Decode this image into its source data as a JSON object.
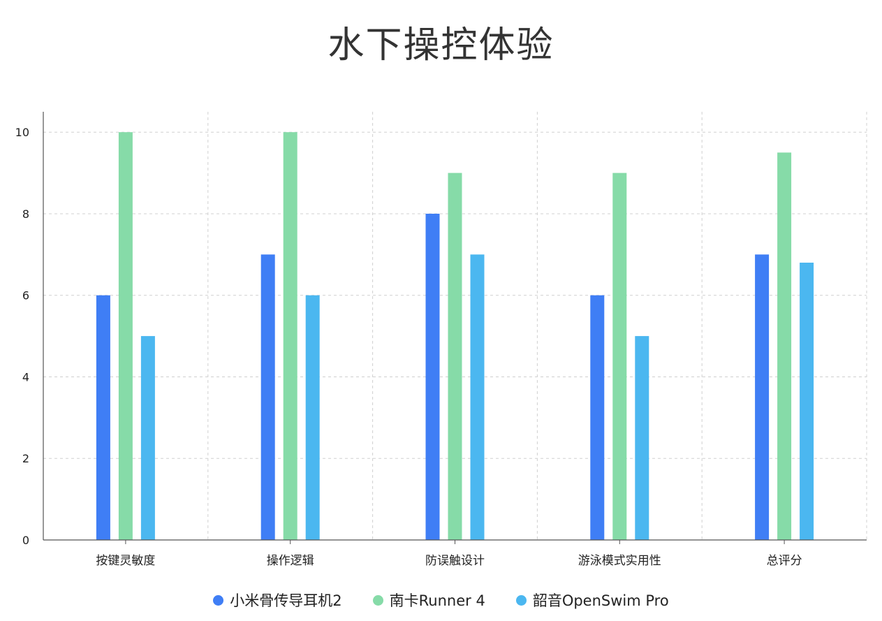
{
  "chart_data": {
    "type": "bar",
    "title": "水下操控体验",
    "categories": [
      "按键灵敏度",
      "操作逻辑",
      "防误触设计",
      "游泳模式实用性",
      "总评分"
    ],
    "series": [
      {
        "name": "小米骨传导耳机2",
        "color": "#3f7ef5",
        "values": [
          6,
          7,
          8,
          6,
          7
        ]
      },
      {
        "name": "南卡Runner 4",
        "color": "#86dba8",
        "values": [
          10,
          10,
          9,
          9,
          9.5
        ]
      },
      {
        "name": "韶音OpenSwim Pro",
        "color": "#4bb7f0",
        "values": [
          5,
          6,
          7,
          5,
          6.8
        ]
      }
    ],
    "ylim": [
      0,
      10.5
    ],
    "yticks": [
      0,
      2,
      4,
      6,
      8,
      10
    ],
    "grid": true,
    "legend_position": "bottom-center"
  }
}
